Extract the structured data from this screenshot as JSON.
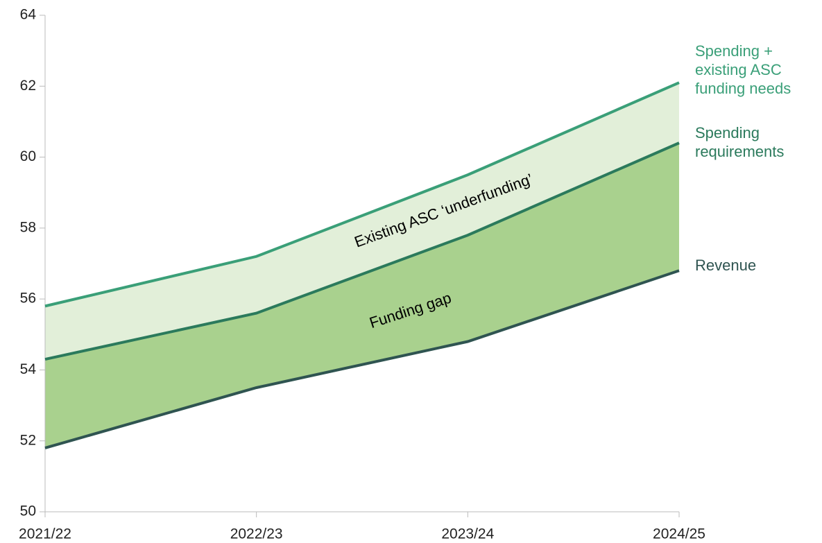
{
  "chart_data": {
    "type": "line",
    "categories": [
      "2021/22",
      "2022/23",
      "2023/24",
      "2024/25"
    ],
    "series": [
      {
        "name": "Spending + existing ASC funding needs",
        "color": "#3a9f78",
        "values": [
          55.8,
          57.2,
          59.5,
          62.1
        ]
      },
      {
        "name": "Spending requirements",
        "color": "#2b7a5c",
        "values": [
          54.3,
          55.6,
          57.8,
          60.4
        ]
      },
      {
        "name": "Revenue",
        "color": "#2f5451",
        "values": [
          51.8,
          53.5,
          54.8,
          56.8
        ]
      }
    ],
    "band_colors": [
      "#e2efd9",
      "#a9d18e"
    ],
    "annotations": [
      "Existing ASC ‘underfunding’",
      "Funding gap"
    ],
    "ylim": [
      50,
      64
    ],
    "yticks": [
      50,
      52,
      54,
      56,
      58,
      60,
      62,
      64
    ],
    "grid": false
  }
}
